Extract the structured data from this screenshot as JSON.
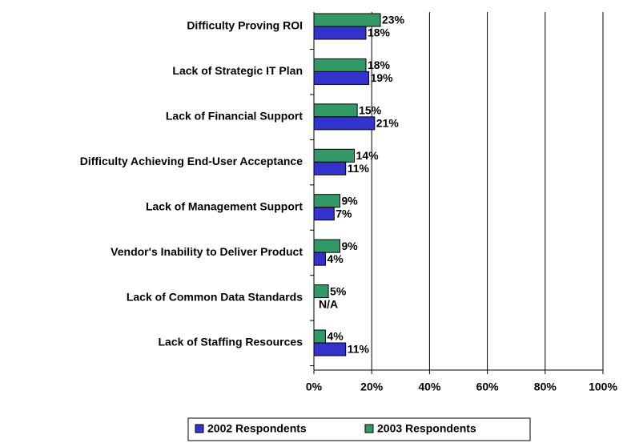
{
  "chart_data": {
    "type": "bar",
    "orientation": "horizontal",
    "categories": [
      "Difficulty Proving ROI",
      "Lack of Strategic IT Plan",
      "Lack of Financial Support",
      "Difficulty Achieving End-User Acceptance",
      "Lack of Management Support",
      "Vendor's Inability to Deliver Product",
      "Lack of Common Data Standards",
      "Lack of Staffing Resources"
    ],
    "series": [
      {
        "name": "2002 Respondents",
        "color": "#3333cc",
        "values": [
          18,
          19,
          21,
          11,
          7,
          4,
          null,
          11
        ],
        "value_labels": [
          "18%",
          "19%",
          "21%",
          "11%",
          "7%",
          "4%",
          "N/A",
          "11%"
        ]
      },
      {
        "name": "2003 Respondents",
        "color": "#339966",
        "values": [
          23,
          18,
          15,
          14,
          9,
          9,
          5,
          4
        ],
        "value_labels": [
          "23%",
          "18%",
          "15%",
          "14%",
          "9%",
          "9%",
          "5%",
          "4%"
        ]
      }
    ],
    "xlim": [
      0,
      100
    ],
    "xticks": [
      {
        "value": 0,
        "label": "0%"
      },
      {
        "value": 20,
        "label": "20%"
      },
      {
        "value": 40,
        "label": "40%"
      },
      {
        "value": 60,
        "label": "60%"
      },
      {
        "value": 80,
        "label": "80%"
      },
      {
        "value": 100,
        "label": "100%"
      }
    ],
    "grid": true,
    "legend": "bottom"
  }
}
